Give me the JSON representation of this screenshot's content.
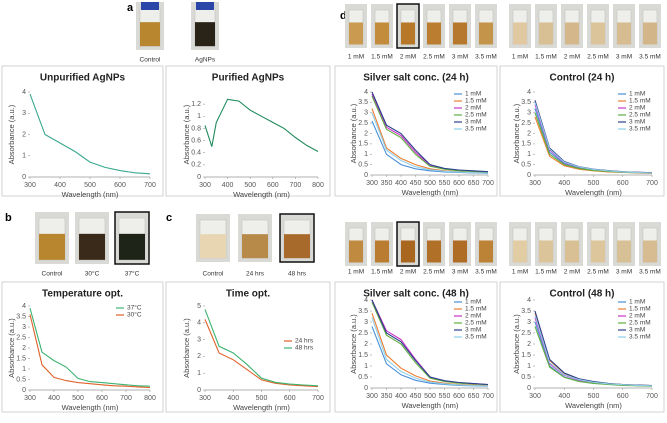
{
  "panel_labels": [
    "a",
    "b",
    "c",
    "d"
  ],
  "photo_groups": [
    {
      "labels": [
        "Control",
        "AgNPs"
      ]
    },
    {
      "labels": [
        "Control",
        "30°C",
        "37°C"
      ]
    },
    {
      "labels": [
        "Control",
        "24 hrs",
        "48 hrs"
      ]
    },
    {
      "labels": [
        "1 mM",
        "1.5 mM",
        "2 mM",
        "2.5 mM",
        "3 mM",
        "3.5 mM"
      ]
    },
    {
      "labels": [
        "1 mM",
        "1.5 mM",
        "2 mM",
        "2.5 mM",
        "3 mM",
        "3.5 mM"
      ]
    },
    {
      "labels": [
        "1 mM",
        "1.5 mM",
        "2 mM",
        "2.5 mM",
        "3 mM",
        "3.5 mM"
      ]
    },
    {
      "labels": [
        "1 mM",
        "1.5 mM",
        "2 mM",
        "2.5 mM",
        "3 mM",
        "3.5 mM"
      ]
    }
  ],
  "chart_data": [
    {
      "type": "line",
      "title": "Unpurified AgNPs",
      "x_label": "Wavelength  (nm)",
      "y_label": "Absorbance  (a.u.)",
      "x": [
        300,
        350,
        400,
        450,
        500,
        550,
        600,
        650,
        700
      ],
      "series": [
        {
          "name": "Unpurified AgNPs",
          "color": "#3aa88f",
          "values": [
            3.9,
            2.0,
            1.6,
            1.2,
            0.7,
            0.45,
            0.3,
            0.2,
            0.15
          ]
        }
      ],
      "xlim": [
        300,
        700
      ],
      "xticks": [
        300,
        400,
        500,
        600,
        700
      ],
      "ylim": [
        0,
        4
      ],
      "yticks": [
        0,
        1,
        2,
        3,
        4
      ]
    },
    {
      "type": "line",
      "title": "Purified AgNPs",
      "x_label": "Wavelength  (nm)",
      "y_label": "Absorbance  (a.u.)",
      "x": [
        300,
        330,
        350,
        400,
        450,
        500,
        550,
        600,
        650,
        700,
        750,
        800
      ],
      "series": [
        {
          "name": "Purified AgNPs",
          "color": "#1f8a5b",
          "values": [
            0.85,
            0.5,
            0.9,
            1.28,
            1.25,
            1.1,
            1.0,
            0.9,
            0.8,
            0.65,
            0.52,
            0.42
          ]
        }
      ],
      "xlim": [
        300,
        800
      ],
      "xticks": [
        300,
        400,
        500,
        600,
        700,
        800
      ],
      "ylim": [
        0,
        1.4
      ],
      "yticks": [
        0,
        0.2,
        0.4,
        0.6,
        0.8,
        1,
        1.2
      ]
    },
    {
      "type": "line",
      "title": "Temperature opt.",
      "x_label": "Wavelength  (nm)",
      "y_label": "Absorbance  (a.u.)",
      "legend": "upper right",
      "x": [
        300,
        350,
        400,
        450,
        500,
        550,
        600,
        650,
        700,
        750,
        800
      ],
      "series": [
        {
          "name": "37°C",
          "color": "#3cb371",
          "values": [
            3.9,
            1.8,
            1.4,
            1.1,
            0.55,
            0.4,
            0.35,
            0.3,
            0.25,
            0.2,
            0.18
          ]
        },
        {
          "name": "30°C",
          "color": "#e0622a",
          "values": [
            3.6,
            1.2,
            0.6,
            0.45,
            0.35,
            0.3,
            0.25,
            0.2,
            0.18,
            0.15,
            0.12
          ]
        }
      ],
      "xlim": [
        300,
        800
      ],
      "xticks": [
        300,
        400,
        500,
        600,
        700,
        800
      ],
      "ylim": [
        0,
        4
      ],
      "yticks": [
        0,
        0.5,
        1,
        1.5,
        2,
        2.5,
        3,
        3.5,
        4
      ]
    },
    {
      "type": "line",
      "title": "Time opt.",
      "x_label": "Wavelength  (nm)",
      "y_label": "Absorbance  (a.u.)",
      "legend": "center right",
      "x": [
        300,
        350,
        400,
        450,
        500,
        550,
        600,
        650,
        700
      ],
      "series": [
        {
          "name": "24 hrs",
          "color": "#e0622a",
          "values": [
            4.2,
            2.2,
            1.8,
            1.2,
            0.6,
            0.4,
            0.3,
            0.25,
            0.2
          ]
        },
        {
          "name": "48 hrs",
          "color": "#3cb371",
          "values": [
            4.8,
            2.6,
            2.2,
            1.5,
            0.7,
            0.45,
            0.35,
            0.3,
            0.25
          ]
        }
      ],
      "xlim": [
        300,
        700
      ],
      "xticks": [
        300,
        400,
        500,
        600,
        700
      ],
      "ylim": [
        0,
        5
      ],
      "yticks": [
        0,
        1,
        2,
        3,
        4,
        5
      ]
    },
    {
      "type": "line",
      "title": "Silver salt conc. (24 h)",
      "x_label": "Wavelength  (nm)",
      "y_label": "Absorbance  (a.u.)",
      "legend": "upper right",
      "x": [
        300,
        350,
        400,
        450,
        500,
        550,
        600,
        650,
        700
      ],
      "series": [
        {
          "name": "1 mM",
          "color": "#4a90d9",
          "values": [
            2.6,
            1.0,
            0.5,
            0.3,
            0.2,
            0.15,
            0.12,
            0.1,
            0.08
          ]
        },
        {
          "name": "1.5 mM",
          "color": "#ed7d31",
          "values": [
            3.2,
            1.3,
            0.8,
            0.5,
            0.3,
            0.2,
            0.15,
            0.12,
            0.1
          ]
        },
        {
          "name": "2 mM",
          "color": "#cc33cc",
          "values": [
            3.9,
            2.3,
            1.9,
            1.1,
            0.45,
            0.3,
            0.22,
            0.18,
            0.15
          ]
        },
        {
          "name": "2.5 mM",
          "color": "#5fae3e",
          "values": [
            3.8,
            2.2,
            1.8,
            1.0,
            0.42,
            0.28,
            0.2,
            0.17,
            0.14
          ]
        },
        {
          "name": "3 mM",
          "color": "#2b3f8c",
          "values": [
            4.0,
            2.4,
            2.0,
            1.2,
            0.5,
            0.32,
            0.24,
            0.2,
            0.16
          ]
        },
        {
          "name": "3.5 mM",
          "color": "#8fd0e8",
          "values": [
            3.0,
            1.2,
            0.7,
            0.4,
            0.25,
            0.18,
            0.14,
            0.11,
            0.09
          ]
        }
      ],
      "xlim": [
        300,
        700
      ],
      "xticks": [
        300,
        350,
        400,
        450,
        500,
        550,
        600,
        650,
        700
      ],
      "ylim": [
        0,
        4
      ],
      "yticks": [
        0,
        0.5,
        1,
        1.5,
        2,
        2.5,
        3,
        3.5,
        4
      ]
    },
    {
      "type": "line",
      "title": "Control (24 h)",
      "x_label": "Wavelength  (nm)",
      "y_label": "Absorbance  (a.u.)",
      "legend": "upper right",
      "x": [
        300,
        350,
        400,
        450,
        500,
        550,
        600,
        650,
        700
      ],
      "series": [
        {
          "name": "1 mM",
          "color": "#4a90d9",
          "values": [
            3.2,
            1.1,
            0.55,
            0.35,
            0.25,
            0.18,
            0.14,
            0.12,
            0.1
          ]
        },
        {
          "name": "1.5 mM",
          "color": "#ed7d31",
          "values": [
            2.8,
            0.9,
            0.45,
            0.28,
            0.2,
            0.15,
            0.12,
            0.1,
            0.08
          ]
        },
        {
          "name": "2 mM",
          "color": "#cc33cc",
          "values": [
            3.4,
            1.2,
            0.6,
            0.38,
            0.27,
            0.2,
            0.15,
            0.13,
            0.11
          ]
        },
        {
          "name": "2.5 mM",
          "color": "#5fae3e",
          "values": [
            3.0,
            1.0,
            0.5,
            0.32,
            0.22,
            0.17,
            0.13,
            0.11,
            0.09
          ]
        },
        {
          "name": "3 mM",
          "color": "#2b3f8c",
          "values": [
            3.6,
            1.3,
            0.65,
            0.4,
            0.28,
            0.21,
            0.16,
            0.13,
            0.11
          ]
        },
        {
          "name": "3.5 mM",
          "color": "#8fd0e8",
          "values": [
            3.5,
            1.25,
            0.62,
            0.39,
            0.27,
            0.2,
            0.15,
            0.12,
            0.1
          ]
        }
      ],
      "xlim": [
        300,
        700
      ],
      "xticks": [
        300,
        400,
        500,
        600,
        700
      ],
      "ylim": [
        0,
        4
      ],
      "yticks": [
        0,
        0.5,
        1,
        1.5,
        2,
        2.5,
        3,
        3.5,
        4
      ]
    },
    {
      "type": "line",
      "title": "Silver salt conc. (48 h)",
      "x_label": "Wavelength  (nm)",
      "y_label": "Absorbance  (a.u.)",
      "legend": "upper right",
      "x": [
        300,
        350,
        400,
        450,
        500,
        550,
        600,
        650,
        700
      ],
      "series": [
        {
          "name": "1 mM",
          "color": "#4a90d9",
          "values": [
            2.8,
            1.1,
            0.6,
            0.35,
            0.22,
            0.16,
            0.12,
            0.1,
            0.08
          ]
        },
        {
          "name": "1.5 mM",
          "color": "#ed7d31",
          "values": [
            3.4,
            1.5,
            0.9,
            0.55,
            0.32,
            0.22,
            0.16,
            0.13,
            0.1
          ]
        },
        {
          "name": "2 mM",
          "color": "#cc33cc",
          "values": [
            4.0,
            2.6,
            2.2,
            1.3,
            0.5,
            0.32,
            0.24,
            0.2,
            0.16
          ]
        },
        {
          "name": "2.5 mM",
          "color": "#5fae3e",
          "values": [
            3.9,
            2.4,
            2.0,
            1.15,
            0.45,
            0.3,
            0.22,
            0.18,
            0.15
          ]
        },
        {
          "name": "3 mM",
          "color": "#2b3f8c",
          "values": [
            4.0,
            2.5,
            2.1,
            1.25,
            0.5,
            0.33,
            0.25,
            0.2,
            0.16
          ]
        },
        {
          "name": "3.5 mM",
          "color": "#8fd0e8",
          "values": [
            3.2,
            1.3,
            0.75,
            0.45,
            0.27,
            0.19,
            0.14,
            0.11,
            0.09
          ]
        }
      ],
      "xlim": [
        300,
        700
      ],
      "xticks": [
        300,
        350,
        400,
        450,
        500,
        550,
        600,
        650,
        700
      ],
      "ylim": [
        0,
        4
      ],
      "yticks": [
        0,
        0.5,
        1,
        1.5,
        2,
        2.5,
        3,
        3.5,
        4
      ]
    },
    {
      "type": "line",
      "title": "Control (48 h)",
      "x_label": "Wavelength  (nm)",
      "y_label": "Absorbance  (a.u.)",
      "legend": "upper right",
      "x": [
        300,
        350,
        400,
        450,
        500,
        550,
        600,
        650,
        700
      ],
      "series": [
        {
          "name": "1 mM",
          "color": "#4a90d9",
          "values": [
            3.0,
            1.0,
            0.5,
            0.32,
            0.22,
            0.17,
            0.13,
            0.11,
            0.09
          ]
        },
        {
          "name": "1.5 mM",
          "color": "#ed7d31",
          "values": [
            3.4,
            1.25,
            0.65,
            0.4,
            0.28,
            0.2,
            0.16,
            0.13,
            0.11
          ]
        },
        {
          "name": "2 mM",
          "color": "#cc33cc",
          "values": [
            3.2,
            1.1,
            0.58,
            0.36,
            0.25,
            0.18,
            0.14,
            0.12,
            0.1
          ]
        },
        {
          "name": "2.5 mM",
          "color": "#5fae3e",
          "values": [
            2.8,
            0.95,
            0.48,
            0.3,
            0.21,
            0.16,
            0.12,
            0.1,
            0.08
          ]
        },
        {
          "name": "3 mM",
          "color": "#2b3f8c",
          "values": [
            3.5,
            1.3,
            0.68,
            0.42,
            0.29,
            0.21,
            0.16,
            0.13,
            0.11
          ]
        },
        {
          "name": "3.5 mM",
          "color": "#8fd0e8",
          "values": [
            3.3,
            1.15,
            0.6,
            0.38,
            0.26,
            0.19,
            0.15,
            0.12,
            0.1
          ]
        }
      ],
      "xlim": [
        300,
        700
      ],
      "xticks": [
        300,
        400,
        500,
        600,
        700
      ],
      "ylim": [
        0,
        4
      ],
      "yticks": [
        0,
        0.5,
        1,
        1.5,
        2,
        2.5,
        3,
        3.5,
        4
      ]
    }
  ]
}
